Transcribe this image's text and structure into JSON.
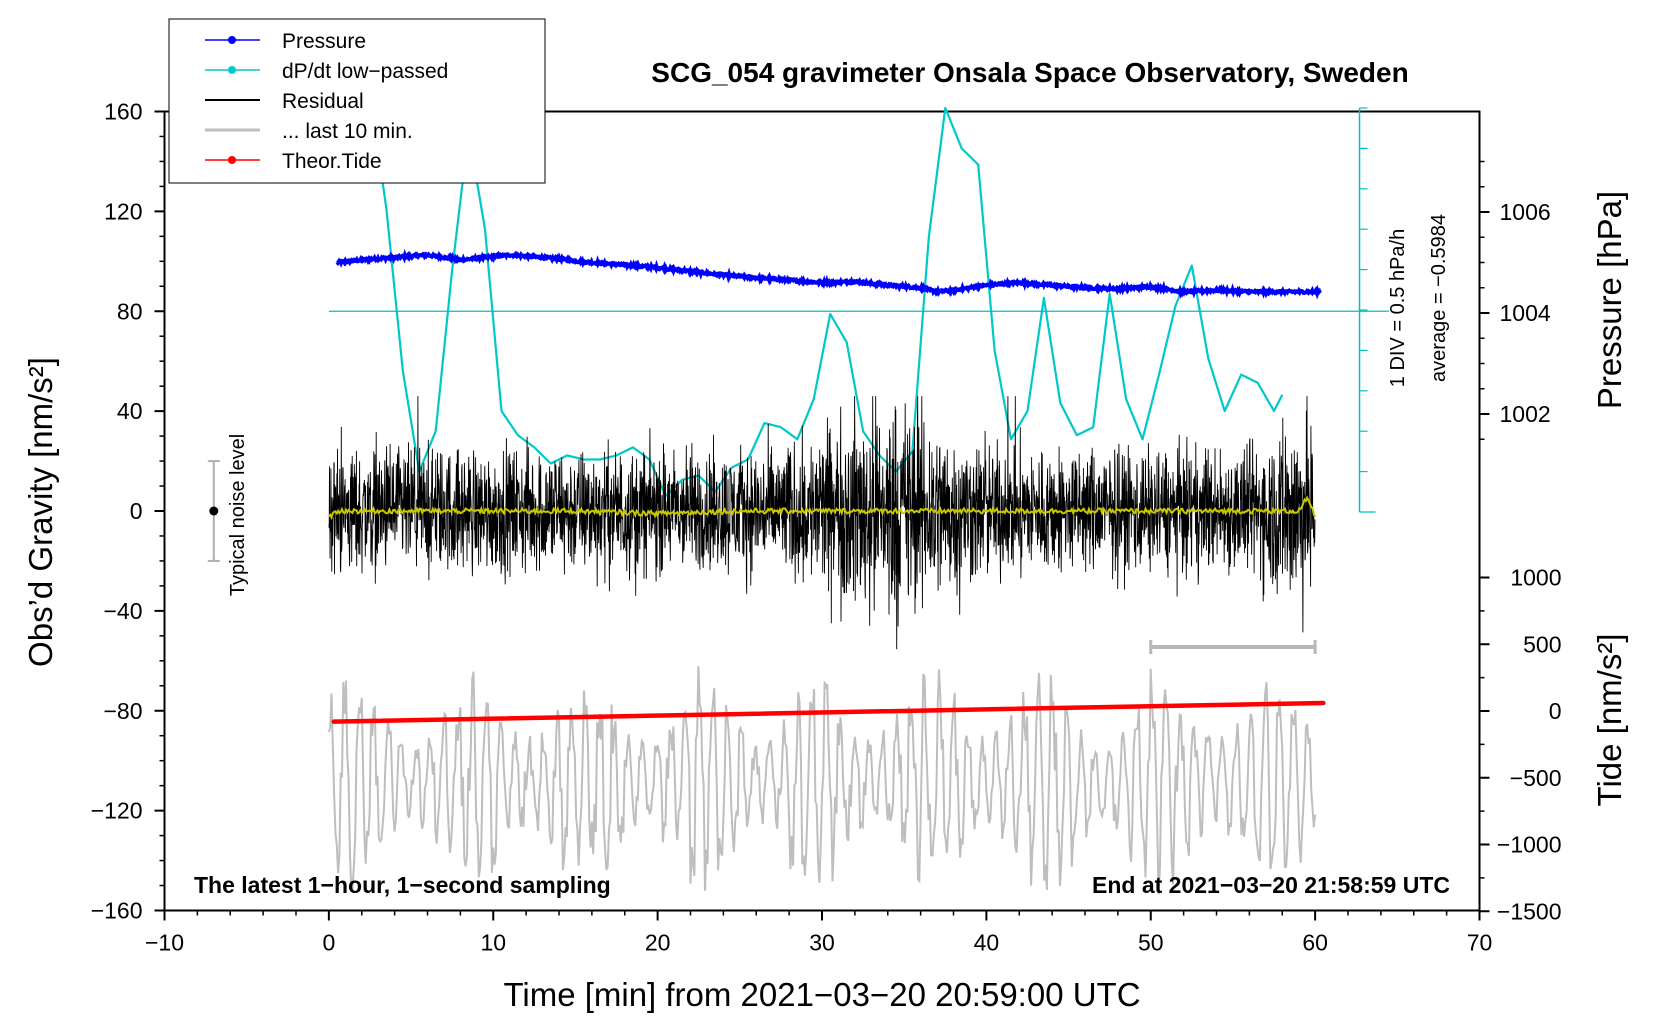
{
  "chart_data": {
    "type": "line",
    "title": "SCG_054 gravimeter Onsala Space Observatory, Sweden",
    "xlabel": "Time [min] from 2021−03−20 20:59:00 UTC",
    "ylabel_left": "Obs’d Gravity [nm/s²]",
    "ylabel_right_top": "Pressure [hPa]",
    "ylabel_right_bottom": "Tide [nm/s²]",
    "xlim": [
      -10,
      70
    ],
    "ylim_left": [
      -160,
      160
    ],
    "x_ticks": [
      "−10",
      "0",
      "10",
      "20",
      "30",
      "40",
      "50",
      "60",
      "70"
    ],
    "y_ticks_left": [
      "160",
      "120",
      "80",
      "40",
      "0",
      "−40",
      "−80",
      "−120",
      "−160"
    ],
    "pressure_ticks": [
      "1006",
      "1004",
      "1002"
    ],
    "tide_ticks": [
      "1000",
      "500",
      "0",
      "−500",
      "−1000",
      "−1500"
    ],
    "legend": {
      "position": "top-left",
      "entries": [
        {
          "label": "Pressure",
          "color": "#0000ff",
          "marker": true
        },
        {
          "label": "dP/dt low−passed",
          "color": "#00c8c8",
          "marker": true
        },
        {
          "label": "Residual",
          "color": "#000000",
          "marker": false
        },
        {
          "label": "... last 10 min.",
          "color": "#bebebe",
          "marker": false
        },
        {
          "label": "Theor.Tide",
          "color": "#ff0000",
          "marker": true
        }
      ]
    },
    "annotations": {
      "noise_label": "Typical noise level",
      "dpdt_scale": "1 DIV = 0.5 hPa/h",
      "dpdt_average": "average = −0.5984",
      "footer_left": "The latest 1−hour, 1−second sampling",
      "footer_right": "End at 2021−03−20 21:58:59 UTC"
    },
    "noise_level": {
      "x": -7,
      "center": 0,
      "half_range": 20
    },
    "series": [
      {
        "name": "Pressure",
        "color": "#0000ff",
        "axis": "pressure_hPa",
        "x": [
          0.5,
          2,
          4,
          6,
          8,
          10,
          11,
          13,
          16,
          20,
          24,
          28,
          30,
          32,
          34,
          36,
          37,
          38,
          40,
          42,
          44,
          46,
          48,
          50,
          52,
          54,
          56,
          58,
          60.3
        ],
        "values": [
          1005.0,
          1005.05,
          1005.1,
          1005.15,
          1005.05,
          1005.12,
          1005.15,
          1005.1,
          1005.0,
          1004.9,
          1004.75,
          1004.65,
          1004.6,
          1004.62,
          1004.55,
          1004.5,
          1004.42,
          1004.45,
          1004.55,
          1004.6,
          1004.55,
          1004.5,
          1004.48,
          1004.52,
          1004.42,
          1004.45,
          1004.42,
          1004.42,
          1004.42
        ]
      },
      {
        "name": "dP/dt low−passed",
        "color": "#00c8c8",
        "axis": "dpdt_div",
        "x": [
          2,
          2.8,
          3.5,
          4.5,
          5.5,
          6.5,
          7.5,
          8.5,
          9.5,
          10.5,
          11.5,
          12.5,
          13.5,
          14.5,
          15.5,
          16.5,
          17.5,
          18.5,
          19.5,
          20.5,
          21.5,
          22.5,
          23.5,
          24.5,
          25.5,
          26.5,
          27.5,
          28.5,
          29.5,
          30.5,
          31.5,
          32.5,
          33.5,
          34.5,
          35.5,
          36.5,
          37.5,
          38.5,
          39.5,
          40.5,
          41.5,
          42.5,
          43.5,
          44.5,
          45.5,
          46.5,
          47.5,
          48.5,
          49.5,
          50.5,
          51.5,
          52.5,
          53.5,
          54.5,
          55.5,
          56.5,
          57.5,
          58
        ],
        "values": [
          8.2,
          9.5,
          7.5,
          3.5,
          1.0,
          2.0,
          6.0,
          9.4,
          7.0,
          2.5,
          1.9,
          1.6,
          1.2,
          1.4,
          1.3,
          1.3,
          1.4,
          1.6,
          1.3,
          0.4,
          0.8,
          0.9,
          0.5,
          1.1,
          1.3,
          2.2,
          2.1,
          1.8,
          2.8,
          4.9,
          4.2,
          2.0,
          1.4,
          1.0,
          1.5,
          6.8,
          10.0,
          9.0,
          8.6,
          4.0,
          1.8,
          2.5,
          5.3,
          2.7,
          1.9,
          2.1,
          5.4,
          2.8,
          1.8,
          3.4,
          5.1,
          6.1,
          3.8,
          2.5,
          3.4,
          3.2,
          2.5,
          2.9
        ]
      },
      {
        "name": "Residual",
        "color": "#000000",
        "axis": "gravity",
        "x": [
          0,
          60
        ],
        "envelope": [
          -58,
          46
        ],
        "values": [
          0,
          0
        ]
      },
      {
        "name": "Smoothed residual",
        "color": "#c8c800",
        "axis": "gravity",
        "x": [
          0,
          0.5,
          5,
          10,
          15,
          20,
          25,
          30,
          35,
          40,
          45,
          50,
          55,
          59,
          59.5,
          60
        ],
        "values": [
          -3,
          0,
          0,
          0,
          0,
          -1,
          0,
          0,
          0,
          0,
          0,
          0,
          0,
          0,
          5,
          -2
        ]
      },
      {
        "name": "... last 10 min.",
        "color": "#bebebe",
        "axis": "gravity",
        "x": [
          0,
          60
        ],
        "envelope": [
          -157,
          -60
        ],
        "values": [
          -100,
          -100
        ]
      },
      {
        "name": "Theor.Tide",
        "color": "#ff0000",
        "axis": "tide_nm_s2",
        "x": [
          0.3,
          60.5
        ],
        "values": [
          -80,
          60
        ]
      }
    ]
  }
}
